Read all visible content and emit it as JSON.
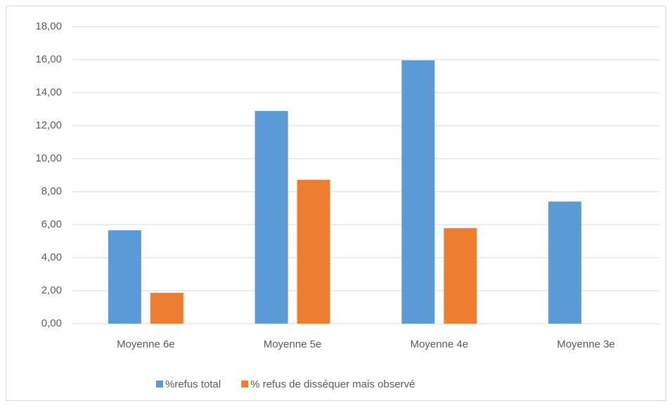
{
  "chart_data": {
    "type": "bar",
    "categories": [
      "Moyenne 6e",
      "Moyenne 5e",
      "Moyenne 4e",
      "Moyenne 3e"
    ],
    "series": [
      {
        "name": "%refus total",
        "color": "#5b9bd5",
        "values": [
          5.66,
          12.89,
          15.96,
          7.4
        ]
      },
      {
        "name": "% refus de disséquer mais observé",
        "color": "#ed7d31",
        "values": [
          1.87,
          8.72,
          5.79,
          0
        ]
      }
    ],
    "ylim": [
      0,
      18
    ],
    "yticks": [
      {
        "value": 0,
        "label": "0,00"
      },
      {
        "value": 2,
        "label": "2,00"
      },
      {
        "value": 4,
        "label": "4,00"
      },
      {
        "value": 6,
        "label": "6,00"
      },
      {
        "value": 8,
        "label": "8,00"
      },
      {
        "value": 10,
        "label": "10,00"
      },
      {
        "value": 12,
        "label": "12,00"
      },
      {
        "value": 14,
        "label": "14,00"
      },
      {
        "value": 16,
        "label": "16,00"
      },
      {
        "value": 18,
        "label": "18,00"
      }
    ],
    "grid": true,
    "legend": "bottom"
  }
}
